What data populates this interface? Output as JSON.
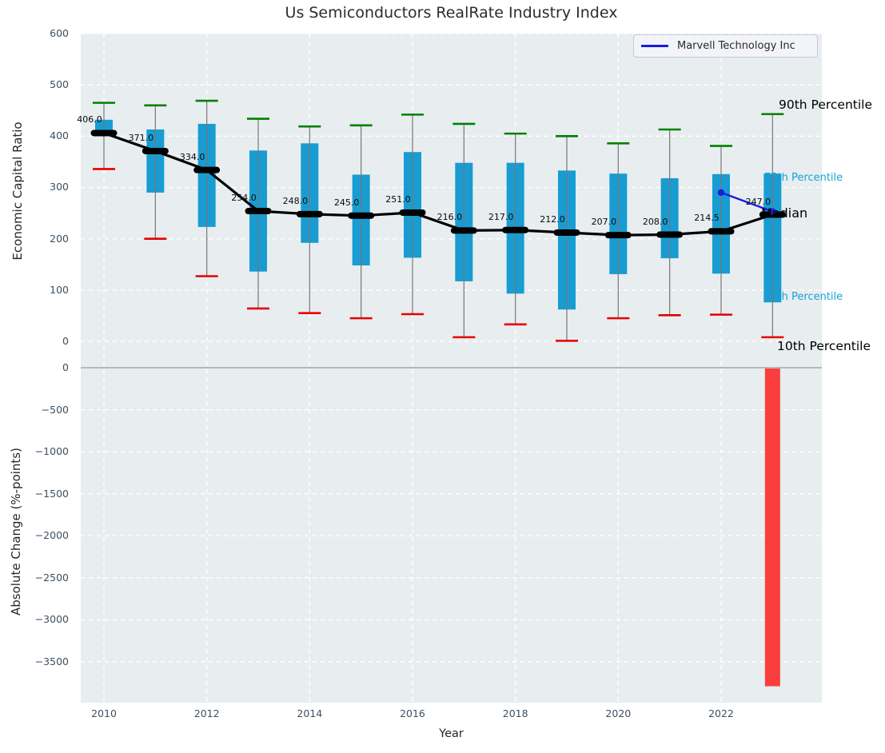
{
  "title": "Us Semiconductors RealRate Industry Index",
  "legend": {
    "label": "Marvell Technology Inc"
  },
  "axes": {
    "top_ylabel": "Economic Capital Ratio",
    "bottom_ylabel": "Absolute Change (%-points)",
    "xlabel": "Year"
  },
  "colors": {
    "box": "#189cd2",
    "p90_cap": "#008000",
    "p10_cap": "#e60000",
    "whisker": "#777777",
    "median_line": "#000000",
    "marvell_line": "#1c1ce0",
    "change_bar": "#fa3e3e",
    "plot_bg": "#e8edf0",
    "grid": "#ffffff",
    "zero_line": "#b0b0b0",
    "tick_text": "#3d4f63",
    "cyan_label": "#18a3d8"
  },
  "chart_data": [
    {
      "type": "boxplot",
      "title": "Us Semiconductors RealRate Industry Index",
      "ylabel": "Economic Capital Ratio",
      "xlabel": "Year",
      "ylim": [
        -25,
        600
      ],
      "grid": true,
      "legend_position": "upper right",
      "yticks": [
        "0",
        "100",
        "200",
        "300",
        "400",
        "500",
        "600"
      ],
      "ytick_values": [
        0,
        100,
        200,
        300,
        400,
        500,
        600
      ],
      "xticks": [
        "2010",
        "2012",
        "2014",
        "2016",
        "2018",
        "2020",
        "2022"
      ],
      "xtick_values": [
        2010,
        2012,
        2014,
        2016,
        2018,
        2020,
        2022
      ],
      "years": [
        2010,
        2011,
        2012,
        2013,
        2014,
        2015,
        2016,
        2017,
        2018,
        2019,
        2020,
        2021,
        2022,
        2023
      ],
      "p90": [
        465,
        460,
        469,
        434,
        419,
        421,
        442,
        424,
        405,
        400,
        386,
        413,
        381,
        443
      ],
      "p75": [
        432,
        413,
        424,
        372,
        386,
        325,
        369,
        348,
        348,
        333,
        327,
        318,
        326,
        327
      ],
      "median": [
        406,
        371,
        334,
        254,
        248,
        245,
        251,
        216,
        217,
        212,
        207,
        208,
        214.5,
        247
      ],
      "p25": [
        405,
        290,
        223,
        136,
        192,
        148,
        163,
        117,
        93,
        62,
        131,
        162,
        132,
        76
      ],
      "p10": [
        336,
        200,
        127,
        64,
        55,
        45,
        53,
        8,
        33,
        1,
        45,
        51,
        52,
        8
      ],
      "median_labels": [
        "406.0",
        "371.0",
        "334.0",
        "254.0",
        "248.0",
        "245.0",
        "251.0",
        "216.0",
        "217.0",
        "212.0",
        "207.0",
        "208.0",
        "214.5",
        "247.0"
      ],
      "annotations": [
        {
          "text": "90th Percentile",
          "color": "black"
        },
        {
          "text": "75th Percentile",
          "color": "cyan"
        },
        {
          "text": "Median",
          "color": "black"
        },
        {
          "text": "25th Percentile",
          "color": "cyan"
        },
        {
          "text": "10th Percentile",
          "color": "black"
        }
      ],
      "series": [
        {
          "name": "Marvell Technology Inc",
          "x": [
            2022,
            2023
          ],
          "y": [
            290,
            253
          ]
        }
      ]
    },
    {
      "type": "bar",
      "ylabel": "Absolute Change (%-points)",
      "ylim": [
        -3985,
        160
      ],
      "grid": true,
      "yticks": [
        "0",
        "−500",
        "−1000",
        "−1500",
        "−2000",
        "−2500",
        "−3000",
        "−3500"
      ],
      "ytick_values": [
        0,
        -500,
        -1000,
        -1500,
        -2000,
        -2500,
        -3000,
        -3500
      ],
      "categories": [
        2023
      ],
      "values": [
        -3790
      ]
    }
  ]
}
